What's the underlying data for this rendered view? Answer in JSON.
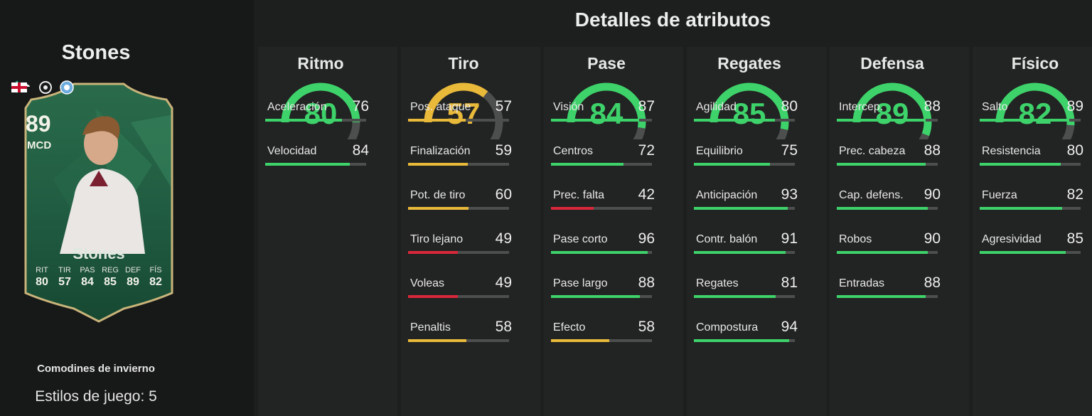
{
  "player": {
    "name": "Stones",
    "card_type": "Comodines de invierno",
    "playstyles": "Estilos de juego: 5"
  },
  "card": {
    "rating": "89",
    "position": "MCD",
    "name": "Stones",
    "stats": [
      {
        "label": "RIT",
        "value": "80"
      },
      {
        "label": "TIR",
        "value": "57"
      },
      {
        "label": "PAS",
        "value": "84"
      },
      {
        "label": "REG",
        "value": "85"
      },
      {
        "label": "DEF",
        "value": "89"
      },
      {
        "label": "FÍS",
        "value": "82"
      }
    ],
    "colors": {
      "bg": "#1f5a40",
      "border": "#c9b47a"
    }
  },
  "title": "Detalles de atributos",
  "colors": {
    "high": "#3ed36a",
    "mid": "#e9b93a",
    "low": "#d9283a",
    "track": "#4d4e4e"
  },
  "categories": [
    {
      "name": "Ritmo",
      "value": "80",
      "attrs": [
        {
          "label": "Aceleración",
          "value": "76"
        },
        {
          "label": "Velocidad",
          "value": "84"
        }
      ]
    },
    {
      "name": "Tiro",
      "value": "57",
      "attrs": [
        {
          "label": "Pos. ataque",
          "value": "57"
        },
        {
          "label": "Finalización",
          "value": "59"
        },
        {
          "label": "Pot. de tiro",
          "value": "60"
        },
        {
          "label": "Tiro lejano",
          "value": "49"
        },
        {
          "label": "Voleas",
          "value": "49"
        },
        {
          "label": "Penaltis",
          "value": "58"
        }
      ]
    },
    {
      "name": "Pase",
      "value": "84",
      "attrs": [
        {
          "label": "Visión",
          "value": "87"
        },
        {
          "label": "Centros",
          "value": "72"
        },
        {
          "label": "Prec. falta",
          "value": "42"
        },
        {
          "label": "Pase corto",
          "value": "96"
        },
        {
          "label": "Pase largo",
          "value": "88"
        },
        {
          "label": "Efecto",
          "value": "58"
        }
      ]
    },
    {
      "name": "Regates",
      "value": "85",
      "attrs": [
        {
          "label": "Agilidad",
          "value": "80"
        },
        {
          "label": "Equilibrio",
          "value": "75"
        },
        {
          "label": "Anticipación",
          "value": "93"
        },
        {
          "label": "Contr. balón",
          "value": "91"
        },
        {
          "label": "Regates",
          "value": "81"
        },
        {
          "label": "Compostura",
          "value": "94"
        }
      ]
    },
    {
      "name": "Defensa",
      "value": "89",
      "attrs": [
        {
          "label": "Intercep.",
          "value": "88"
        },
        {
          "label": "Prec. cabeza",
          "value": "88"
        },
        {
          "label": "Cap. defens.",
          "value": "90"
        },
        {
          "label": "Robos",
          "value": "90"
        },
        {
          "label": "Entradas",
          "value": "88"
        }
      ]
    },
    {
      "name": "Físico",
      "value": "82",
      "attrs": [
        {
          "label": "Salto",
          "value": "89"
        },
        {
          "label": "Resistencia",
          "value": "80"
        },
        {
          "label": "Fuerza",
          "value": "82"
        },
        {
          "label": "Agresividad",
          "value": "85"
        }
      ]
    }
  ]
}
